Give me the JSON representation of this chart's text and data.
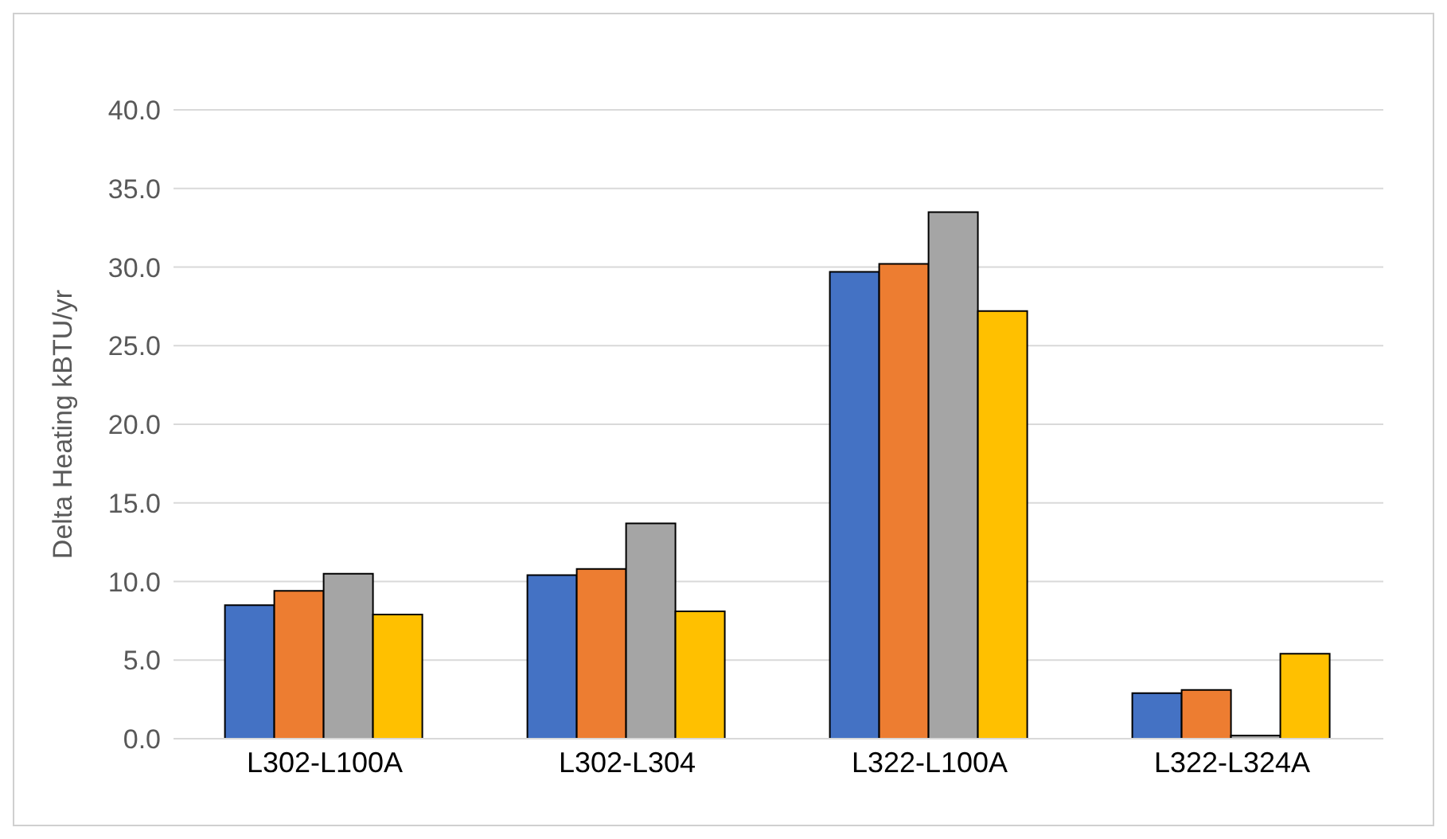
{
  "chart_data": {
    "type": "bar",
    "ylabel": "Delta Heating kBTU/yr",
    "categories": [
      "L302-L100A",
      "L302-L304",
      "L322-L100A",
      "L322-L324A"
    ],
    "series": [
      {
        "color": "#4472c4",
        "values": [
          8.5,
          10.4,
          29.7,
          2.9
        ]
      },
      {
        "color": "#ed7d31",
        "values": [
          9.4,
          10.8,
          30.2,
          3.1
        ]
      },
      {
        "color": "#a5a5a5",
        "values": [
          10.5,
          13.7,
          33.5,
          0.2
        ]
      },
      {
        "color": "#ffc000",
        "values": [
          7.9,
          8.1,
          27.2,
          5.4
        ]
      }
    ],
    "ylim": [
      0,
      40
    ],
    "yticks": [
      {
        "value": 0,
        "label": "0.0"
      },
      {
        "value": 5,
        "label": "5.0"
      },
      {
        "value": 10,
        "label": "10.0"
      },
      {
        "value": 15,
        "label": "15.0"
      },
      {
        "value": 20,
        "label": "20.0"
      },
      {
        "value": 25,
        "label": "25.0"
      },
      {
        "value": 30,
        "label": "30.0"
      },
      {
        "value": 35,
        "label": "35.0"
      },
      {
        "value": 40,
        "label": "40.0"
      }
    ],
    "grid": "y"
  }
}
